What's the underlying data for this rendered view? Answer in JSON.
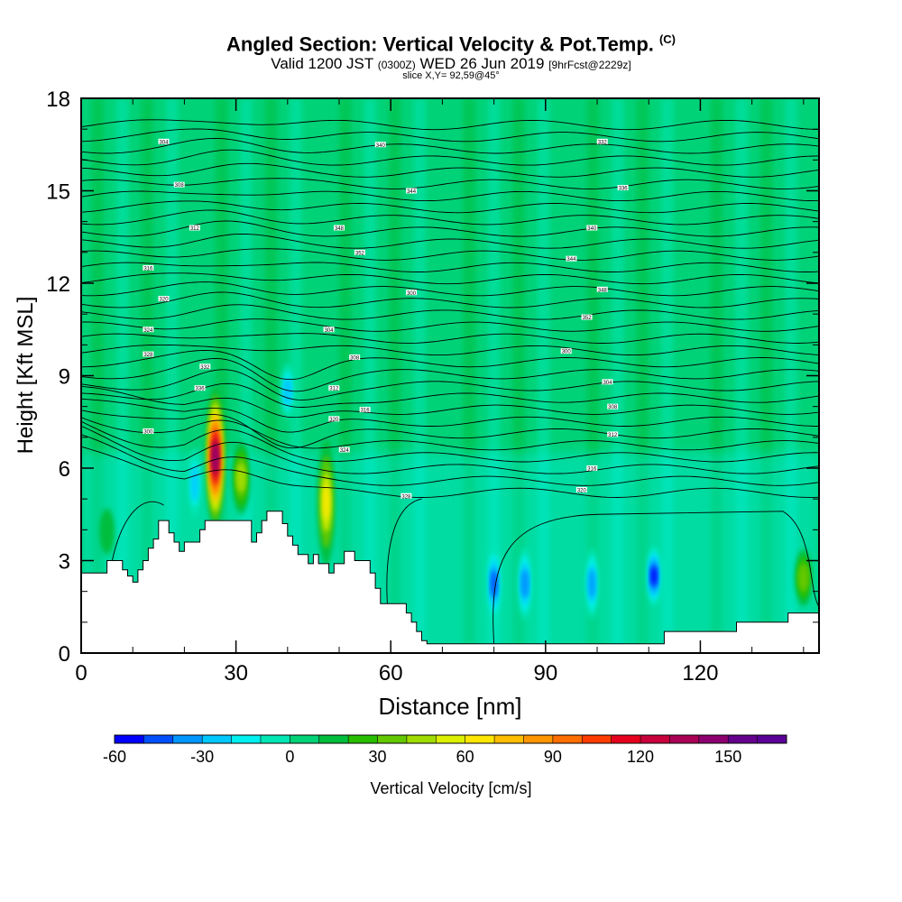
{
  "title": "Angled Section: Vertical Velocity & Pot.Temp.",
  "copyright": "(C)",
  "subtitle": {
    "prefix": "Valid 1200 JST",
    "zulu": "(0300Z)",
    "date": "WED 26 Jun 2019",
    "forecast": "[9hrFcst@2229z]"
  },
  "slice_label": "slice X,Y= 92,59@45°",
  "colorbar": {
    "label": "Vertical Velocity [cm/s]",
    "ticks": [
      "-60",
      "-30",
      "0",
      "30",
      "60",
      "90",
      "120",
      "150"
    ],
    "tick_values": [
      -60,
      -30,
      0,
      30,
      60,
      90,
      120,
      150
    ],
    "range": [
      -60,
      170
    ],
    "step": 10,
    "colors": [
      "#0000ff",
      "#0050ff",
      "#0096ff",
      "#00c8ff",
      "#00f0f0",
      "#00e6b4",
      "#00d278",
      "#00be3c",
      "#28be00",
      "#64c800",
      "#a0dc00",
      "#dcf000",
      "#ffe600",
      "#ffbe00",
      "#ff9600",
      "#ff6e00",
      "#ff3c00",
      "#e6001e",
      "#c8003c",
      "#aa0055",
      "#8c0070",
      "#64008c",
      "#5a0096"
    ]
  },
  "chart_data": {
    "type": "heatmap",
    "title": "Angled Section: Vertical Velocity & Pot.Temp.",
    "xlabel": "Distance [nm]",
    "ylabel": "Height [Kft MSL]",
    "xlim": [
      0,
      143
    ],
    "ylim": [
      0,
      18
    ],
    "x_ticks": [
      0,
      30,
      60,
      90,
      120
    ],
    "y_ticks": [
      0,
      3,
      6,
      9,
      12,
      15,
      18
    ],
    "x_tick_labels": [
      "0",
      "30",
      "60",
      "90",
      "120"
    ],
    "y_tick_labels": [
      "0",
      "3",
      "6",
      "9",
      "12",
      "15",
      "18"
    ],
    "terrain": [
      [
        0,
        2.6
      ],
      [
        5,
        2.6
      ],
      [
        5,
        3.0
      ],
      [
        8,
        3.0
      ],
      [
        8,
        2.7
      ],
      [
        9,
        2.7
      ],
      [
        9,
        2.5
      ],
      [
        10,
        2.5
      ],
      [
        10,
        2.3
      ],
      [
        11,
        2.3
      ],
      [
        11,
        2.7
      ],
      [
        12,
        2.7
      ],
      [
        12,
        3.0
      ],
      [
        13,
        3.0
      ],
      [
        13,
        3.4
      ],
      [
        14,
        3.4
      ],
      [
        14,
        3.7
      ],
      [
        15,
        3.7
      ],
      [
        15,
        4.3
      ],
      [
        17,
        4.3
      ],
      [
        17,
        3.9
      ],
      [
        18,
        3.9
      ],
      [
        18,
        3.6
      ],
      [
        19,
        3.6
      ],
      [
        19,
        3.3
      ],
      [
        20,
        3.3
      ],
      [
        20,
        3.6
      ],
      [
        23,
        3.6
      ],
      [
        23,
        4.0
      ],
      [
        24,
        4.0
      ],
      [
        24,
        4.3
      ],
      [
        33,
        4.3
      ],
      [
        33,
        3.6
      ],
      [
        34,
        3.6
      ],
      [
        34,
        3.9
      ],
      [
        35,
        3.9
      ],
      [
        35,
        4.3
      ],
      [
        36,
        4.3
      ],
      [
        36,
        4.6
      ],
      [
        39,
        4.6
      ],
      [
        39,
        4.2
      ],
      [
        40,
        4.2
      ],
      [
        40,
        3.8
      ],
      [
        41,
        3.8
      ],
      [
        41,
        3.5
      ],
      [
        42,
        3.5
      ],
      [
        42,
        3.2
      ],
      [
        44,
        3.2
      ],
      [
        44,
        2.9
      ],
      [
        45,
        2.9
      ],
      [
        45,
        3.2
      ],
      [
        46,
        3.2
      ],
      [
        46,
        2.9
      ],
      [
        48,
        2.9
      ],
      [
        48,
        2.6
      ],
      [
        49,
        2.6
      ],
      [
        49,
        2.9
      ],
      [
        51,
        2.9
      ],
      [
        51,
        3.3
      ],
      [
        53,
        3.3
      ],
      [
        53,
        3.0
      ],
      [
        56,
        3.0
      ],
      [
        56,
        2.6
      ],
      [
        57,
        2.6
      ],
      [
        57,
        2.1
      ],
      [
        58,
        2.1
      ],
      [
        58,
        1.6
      ],
      [
        63,
        1.6
      ],
      [
        63,
        1.3
      ],
      [
        64,
        1.3
      ],
      [
        64,
        1.0
      ],
      [
        65,
        1.0
      ],
      [
        65,
        0.7
      ],
      [
        66,
        0.7
      ],
      [
        66,
        0.4
      ],
      [
        67,
        0.4
      ],
      [
        67,
        0.3
      ],
      [
        113,
        0.3
      ],
      [
        113,
        0.7
      ],
      [
        127,
        0.7
      ],
      [
        127,
        1.0
      ],
      [
        137,
        1.0
      ],
      [
        137,
        1.3
      ],
      [
        143,
        1.3
      ]
    ],
    "velocity_features": [
      {
        "x": 26,
        "z_bottom": 4.3,
        "z_top": 8.6,
        "w_max": 140
      },
      {
        "x": 31,
        "z_bottom": 4.5,
        "z_top": 7.0,
        "w_max": 40
      },
      {
        "x": 47.5,
        "z_bottom": 3.0,
        "z_top": 7.0,
        "w_max": 65
      },
      {
        "x": 40,
        "z_bottom": 7.5,
        "z_top": 9.5,
        "w_max": -30
      },
      {
        "x": 22,
        "z_bottom": 4.2,
        "z_top": 6.8,
        "w_max": -25
      },
      {
        "x": 111,
        "z_bottom": 1.5,
        "z_top": 3.5,
        "w_max": -55
      },
      {
        "x": 80,
        "z_bottom": 1.0,
        "z_top": 3.5,
        "w_max": -45
      },
      {
        "x": 86,
        "z_bottom": 1.0,
        "z_top": 3.5,
        "w_max": -40
      },
      {
        "x": 99,
        "z_bottom": 1.0,
        "z_top": 3.5,
        "w_max": -35
      },
      {
        "x": 140,
        "z_bottom": 1.5,
        "z_top": 3.5,
        "w_max": 35
      },
      {
        "x": 5,
        "z_bottom": 3.0,
        "z_top": 5.0,
        "w_max": 15
      }
    ],
    "theta_labels": [
      "300",
      "304",
      "308",
      "312",
      "316",
      "320",
      "324",
      "328",
      "332",
      "336",
      "340",
      "344",
      "348",
      "352"
    ],
    "theta_label_points": [
      {
        "x": 13,
        "z": 7.2
      },
      {
        "x": 16,
        "z": 16.6
      },
      {
        "x": 19,
        "z": 15.2
      },
      {
        "x": 22,
        "z": 13.8
      },
      {
        "x": 13,
        "z": 12.5
      },
      {
        "x": 16,
        "z": 11.5
      },
      {
        "x": 13,
        "z": 10.5
      },
      {
        "x": 13,
        "z": 9.7
      },
      {
        "x": 24,
        "z": 9.3
      },
      {
        "x": 23,
        "z": 8.6
      },
      {
        "x": 58,
        "z": 16.5
      },
      {
        "x": 64,
        "z": 15.0
      },
      {
        "x": 50,
        "z": 13.8
      },
      {
        "x": 54,
        "z": 13.0
      },
      {
        "x": 64,
        "z": 11.7
      },
      {
        "x": 48,
        "z": 10.5
      },
      {
        "x": 53,
        "z": 9.6
      },
      {
        "x": 49,
        "z": 8.6
      },
      {
        "x": 55,
        "z": 7.9
      },
      {
        "x": 49,
        "z": 7.6
      },
      {
        "x": 51,
        "z": 6.6
      },
      {
        "x": 63,
        "z": 5.1
      },
      {
        "x": 101,
        "z": 16.6
      },
      {
        "x": 105,
        "z": 15.1
      },
      {
        "x": 99,
        "z": 13.8
      },
      {
        "x": 95,
        "z": 12.8
      },
      {
        "x": 101,
        "z": 11.8
      },
      {
        "x": 98,
        "z": 10.9
      },
      {
        "x": 94,
        "z": 9.8
      },
      {
        "x": 102,
        "z": 8.8
      },
      {
        "x": 103,
        "z": 8.0
      },
      {
        "x": 103,
        "z": 7.1
      },
      {
        "x": 99,
        "z": 6.0
      },
      {
        "x": 97,
        "z": 5.3
      }
    ]
  }
}
